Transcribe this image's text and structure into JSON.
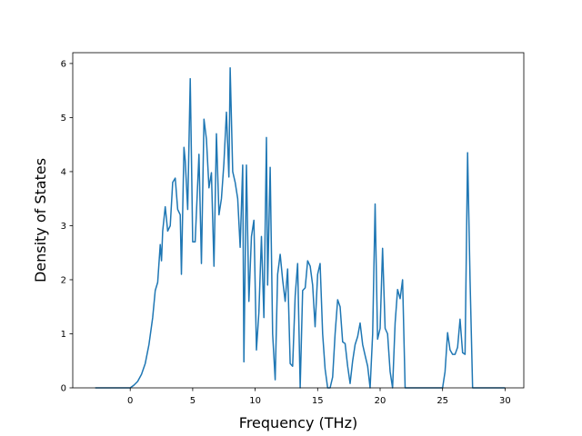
{
  "chart_data": {
    "type": "line",
    "title": "",
    "xlabel": "Frequency (THz)",
    "ylabel": "Density of States",
    "xlim": [
      -4.6,
      31.5
    ],
    "ylim": [
      0,
      6.2
    ],
    "xticks": [
      0,
      5,
      10,
      15,
      20,
      25,
      30
    ],
    "yticks": [
      0,
      1,
      2,
      3,
      4,
      5,
      6
    ],
    "grid": false,
    "line_color": "#1f77b4",
    "series": [
      {
        "x": [
          -2.8,
          0.0,
          0.3,
          0.6,
          0.9,
          1.2,
          1.5,
          1.8,
          2.0,
          2.2,
          2.4,
          2.5,
          2.6,
          2.8,
          3.0,
          3.2,
          3.4,
          3.6,
          3.8,
          4.0,
          4.1,
          4.3,
          4.4,
          4.6,
          4.8,
          4.9,
          5.0,
          5.2,
          5.5,
          5.7,
          5.9,
          6.1,
          6.3,
          6.5,
          6.7,
          6.9,
          7.1,
          7.3,
          7.5,
          7.7,
          7.9,
          8.0,
          8.2,
          8.4,
          8.6,
          8.8,
          9.0,
          9.1,
          9.3,
          9.5,
          9.7,
          9.9,
          10.1,
          10.3,
          10.5,
          10.7,
          10.9,
          11.0,
          11.2,
          11.4,
          11.6,
          11.8,
          12.0,
          12.2,
          12.4,
          12.6,
          12.8,
          13.0,
          13.2,
          13.4,
          13.6,
          13.8,
          14.0,
          14.2,
          14.4,
          14.6,
          14.8,
          15.0,
          15.2,
          15.4,
          15.6,
          15.8,
          16.0,
          16.2,
          16.4,
          16.6,
          16.8,
          17.0,
          17.2,
          17.4,
          17.6,
          17.8,
          18.0,
          18.2,
          18.4,
          18.6,
          18.8,
          19.0,
          19.2,
          19.4,
          19.6,
          19.8,
          20.0,
          20.2,
          20.4,
          20.6,
          20.8,
          21.0,
          21.2,
          21.4,
          21.6,
          21.8,
          22.0,
          25.0,
          25.2,
          25.4,
          25.6,
          25.8,
          26.0,
          26.2,
          26.4,
          26.6,
          26.8,
          27.0,
          27.2,
          27.4,
          27.6,
          30.0
        ],
        "y": [
          0,
          0,
          0.05,
          0.12,
          0.25,
          0.45,
          0.8,
          1.3,
          1.8,
          1.95,
          2.65,
          2.35,
          2.9,
          3.35,
          2.9,
          3.0,
          3.8,
          3.88,
          3.3,
          3.2,
          2.1,
          4.45,
          4.2,
          3.3,
          5.72,
          4.3,
          2.7,
          2.7,
          4.32,
          2.3,
          4.97,
          4.6,
          3.7,
          3.98,
          2.25,
          4.7,
          3.2,
          3.5,
          4.15,
          5.1,
          3.9,
          5.92,
          4.0,
          3.8,
          3.5,
          2.6,
          4.12,
          0.48,
          4.12,
          1.6,
          2.8,
          3.1,
          0.7,
          1.4,
          2.8,
          1.3,
          4.63,
          1.9,
          4.08,
          1.0,
          0.15,
          2.1,
          2.47,
          2.0,
          1.6,
          2.2,
          0.45,
          0.4,
          1.7,
          2.3,
          0,
          1.8,
          1.85,
          2.35,
          2.25,
          1.9,
          1.13,
          2.1,
          2.3,
          1.0,
          0.35,
          0,
          0,
          0.2,
          1.0,
          1.63,
          1.5,
          0.85,
          0.82,
          0.4,
          0.08,
          0.5,
          0.8,
          0.95,
          1.2,
          0.8,
          0.6,
          0.4,
          0,
          1.0,
          3.4,
          0.9,
          1.1,
          2.58,
          1.1,
          1.0,
          0.3,
          0,
          1.2,
          1.82,
          1.65,
          2.0,
          0,
          0,
          0.3,
          1.02,
          0.7,
          0.62,
          0.62,
          0.75,
          1.27,
          0.65,
          0.62,
          4.35,
          2.0,
          0,
          0,
          0
        ]
      }
    ]
  }
}
